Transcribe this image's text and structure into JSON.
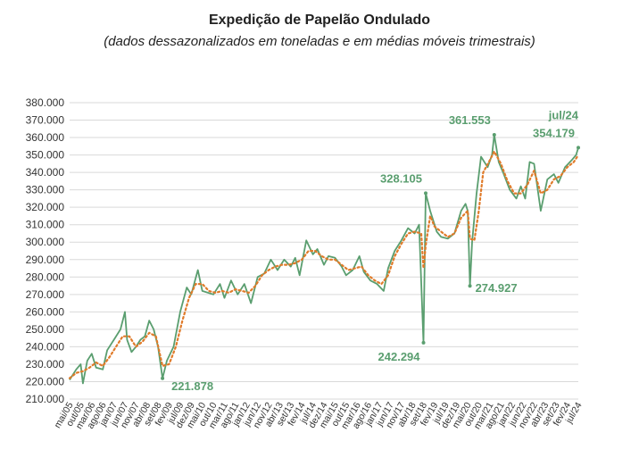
{
  "chart_data": {
    "type": "line",
    "title": "Expedição de Papelão Ondulado",
    "subtitle": "(dados dessazonalizados em toneladas e em médias móveis trimestrais)",
    "xlabel": "",
    "ylabel": "",
    "ylim": [
      210000,
      380000
    ],
    "ytick_step": 10000,
    "grid": true,
    "legend": "none",
    "colors": {
      "monthly": "#5a9e6f",
      "moving_average": "#e07b2a",
      "annotation": "#5a9e6f"
    },
    "x_start": "mai/05",
    "x_end": "jul/24",
    "x_tick_labels": [
      "mai/05",
      "out/05",
      "mar/06",
      "ago/06",
      "jan/07",
      "jun/07",
      "nov/07",
      "abr/08",
      "set/08",
      "fev/09",
      "jul/09",
      "dez/09",
      "mai/10",
      "out/10",
      "mar/11",
      "ago/11",
      "jan/12",
      "jun/12",
      "nov/12",
      "abr/13",
      "set/13",
      "fev/14",
      "jul/14",
      "dez/14",
      "mai/15",
      "out/15",
      "mar/16",
      "ago/16",
      "jan/17",
      "jun/17",
      "nov/17",
      "abr/18",
      "set/18",
      "fev/19",
      "jul/19",
      "dez/19",
      "mai/20",
      "out/20",
      "mar/21",
      "ago/21",
      "jan/22",
      "jun/22",
      "nov/22",
      "abr/23",
      "set/23",
      "fev/24",
      "jul/24"
    ],
    "series": [
      {
        "key": "monthly",
        "style": "solid",
        "points": [
          [
            "mai/05",
            221000
          ],
          [
            "ago/05",
            227000
          ],
          [
            "out/05",
            230000
          ],
          [
            "nov/05",
            219000
          ],
          [
            "jan/06",
            232000
          ],
          [
            "mar/06",
            236000
          ],
          [
            "mai/06",
            228000
          ],
          [
            "ago/06",
            227000
          ],
          [
            "out/06",
            238000
          ],
          [
            "jan/07",
            244000
          ],
          [
            "abr/07",
            250000
          ],
          [
            "jun/07",
            260000
          ],
          [
            "jul/07",
            244000
          ],
          [
            "set/07",
            237000
          ],
          [
            "nov/07",
            240000
          ],
          [
            "jan/08",
            244000
          ],
          [
            "mar/08",
            246000
          ],
          [
            "mai/08",
            255000
          ],
          [
            "jul/08",
            250000
          ],
          [
            "set/08",
            240000
          ],
          [
            "nov/08",
            221878
          ],
          [
            "jan/09",
            232000
          ],
          [
            "abr/09",
            240000
          ],
          [
            "jul/09",
            260000
          ],
          [
            "out/09",
            274000
          ],
          [
            "dez/09",
            270000
          ],
          [
            "mar/10",
            284000
          ],
          [
            "mai/10",
            272000
          ],
          [
            "out/10",
            270000
          ],
          [
            "jan/11",
            276000
          ],
          [
            "mar/11",
            268000
          ],
          [
            "jun/11",
            278000
          ],
          [
            "set/11",
            270000
          ],
          [
            "dez/11",
            276000
          ],
          [
            "mar/12",
            265000
          ],
          [
            "jun/12",
            280000
          ],
          [
            "set/12",
            282000
          ],
          [
            "dez/12",
            290000
          ],
          [
            "mar/13",
            284000
          ],
          [
            "jun/13",
            290000
          ],
          [
            "set/13",
            286000
          ],
          [
            "nov/13",
            291000
          ],
          [
            "jan/14",
            281000
          ],
          [
            "abr/14",
            301000
          ],
          [
            "jul/14",
            293000
          ],
          [
            "set/14",
            296000
          ],
          [
            "dez/14",
            287000
          ],
          [
            "fev/15",
            292000
          ],
          [
            "mai/15",
            291000
          ],
          [
            "ago/15",
            286000
          ],
          [
            "out/15",
            281000
          ],
          [
            "jan/16",
            284000
          ],
          [
            "abr/16",
            292000
          ],
          [
            "jun/16",
            283000
          ],
          [
            "set/16",
            278000
          ],
          [
            "dez/16",
            276000
          ],
          [
            "mar/17",
            272000
          ],
          [
            "mai/17",
            285000
          ],
          [
            "ago/17",
            295000
          ],
          [
            "nov/17",
            301000
          ],
          [
            "fev/18",
            308000
          ],
          [
            "mai/18",
            305000
          ],
          [
            "jul/18",
            310000
          ],
          [
            "set/18",
            242294
          ],
          [
            "out/18",
            328105
          ],
          [
            "dez/18",
            318000
          ],
          [
            "mar/19",
            306000
          ],
          [
            "mai/19",
            303000
          ],
          [
            "ago/19",
            302000
          ],
          [
            "nov/19",
            305000
          ],
          [
            "fev/20",
            318000
          ],
          [
            "abr/20",
            322000
          ],
          [
            "mai/20",
            318000
          ],
          [
            "jun/20",
            274927
          ],
          [
            "jul/20",
            300000
          ],
          [
            "set/20",
            328000
          ],
          [
            "nov/20",
            349000
          ],
          [
            "fev/21",
            343000
          ],
          [
            "abr/21",
            350000
          ],
          [
            "mai/21",
            361553
          ],
          [
            "jul/21",
            346000
          ],
          [
            "set/21",
            340000
          ],
          [
            "dez/21",
            330000
          ],
          [
            "mar/22",
            325000
          ],
          [
            "mai/22",
            332000
          ],
          [
            "jul/22",
            325000
          ],
          [
            "set/22",
            346000
          ],
          [
            "nov/22",
            345000
          ],
          [
            "fev/23",
            318000
          ],
          [
            "mai/23",
            336000
          ],
          [
            "ago/23",
            339000
          ],
          [
            "out/23",
            334000
          ],
          [
            "jan/24",
            343000
          ],
          [
            "abr/24",
            347000
          ],
          [
            "jun/24",
            350000
          ],
          [
            "jul/24",
            354179
          ]
        ]
      },
      {
        "key": "moving_average",
        "style": "dotted",
        "points": [
          [
            "mai/05",
            222000
          ],
          [
            "ago/05",
            225000
          ],
          [
            "nov/05",
            226000
          ],
          [
            "fev/06",
            228000
          ],
          [
            "mai/06",
            231000
          ],
          [
            "ago/06",
            229000
          ],
          [
            "nov/06",
            234000
          ],
          [
            "fev/07",
            240000
          ],
          [
            "mai/07",
            246000
          ],
          [
            "ago/07",
            246000
          ],
          [
            "nov/07",
            240000
          ],
          [
            "fev/08",
            243000
          ],
          [
            "mai/08",
            248000
          ],
          [
            "ago/08",
            246000
          ],
          [
            "nov/08",
            229000
          ],
          [
            "fev/09",
            230000
          ],
          [
            "mai/09",
            240000
          ],
          [
            "ago/09",
            255000
          ],
          [
            "nov/09",
            268000
          ],
          [
            "fev/10",
            276000
          ],
          [
            "mai/10",
            276000
          ],
          [
            "ago/10",
            272000
          ],
          [
            "nov/10",
            271000
          ],
          [
            "fev/11",
            272000
          ],
          [
            "mai/11",
            271000
          ],
          [
            "ago/11",
            273000
          ],
          [
            "nov/11",
            272000
          ],
          [
            "fev/12",
            271000
          ],
          [
            "mai/12",
            275000
          ],
          [
            "ago/12",
            281000
          ],
          [
            "nov/12",
            284000
          ],
          [
            "fev/13",
            286000
          ],
          [
            "mai/13",
            287000
          ],
          [
            "ago/13",
            287000
          ],
          [
            "nov/13",
            288000
          ],
          [
            "fev/14",
            290000
          ],
          [
            "mai/14",
            295000
          ],
          [
            "ago/14",
            295000
          ],
          [
            "nov/14",
            292000
          ],
          [
            "fev/15",
            290000
          ],
          [
            "mai/15",
            290000
          ],
          [
            "ago/15",
            287000
          ],
          [
            "nov/15",
            284000
          ],
          [
            "fev/16",
            285000
          ],
          [
            "mai/16",
            286000
          ],
          [
            "ago/16",
            281000
          ],
          [
            "nov/16",
            278000
          ],
          [
            "fev/17",
            276000
          ],
          [
            "mai/17",
            281000
          ],
          [
            "ago/17",
            292000
          ],
          [
            "nov/17",
            299000
          ],
          [
            "fev/18",
            305000
          ],
          [
            "mai/18",
            306000
          ],
          [
            "ago/18",
            305000
          ],
          [
            "set/18",
            285000
          ],
          [
            "out/18",
            298000
          ],
          [
            "dez/18",
            315000
          ],
          [
            "fev/19",
            309000
          ],
          [
            "mai/19",
            306000
          ],
          [
            "ago/19",
            303000
          ],
          [
            "nov/19",
            305000
          ],
          [
            "fev/20",
            314000
          ],
          [
            "mai/20",
            318000
          ],
          [
            "jun/20",
            302000
          ],
          [
            "ago/20",
            301000
          ],
          [
            "out/20",
            318000
          ],
          [
            "dez/20",
            340000
          ],
          [
            "mar/21",
            347000
          ],
          [
            "mai/21",
            352000
          ],
          [
            "ago/21",
            345000
          ],
          [
            "nov/21",
            335000
          ],
          [
            "fev/22",
            328000
          ],
          [
            "mai/22",
            328000
          ],
          [
            "ago/22",
            333000
          ],
          [
            "nov/22",
            341000
          ],
          [
            "fev/23",
            328000
          ],
          [
            "mai/23",
            330000
          ],
          [
            "ago/23",
            336000
          ],
          [
            "nov/23",
            338000
          ],
          [
            "fev/24",
            343000
          ],
          [
            "mai/24",
            346000
          ],
          [
            "jul/24",
            350000
          ]
        ]
      }
    ],
    "annotations": [
      {
        "x": "nov/08",
        "value": 221878,
        "label": "221.878",
        "placement": "right-below"
      },
      {
        "x": "out/18",
        "value": 328105,
        "label": "328.105",
        "placement": "above-left"
      },
      {
        "x": "set/18",
        "value": 242294,
        "label": "242.294",
        "placement": "below-left"
      },
      {
        "x": "jun/20",
        "value": 274927,
        "label": "274.927",
        "placement": "right"
      },
      {
        "x": "mai/21",
        "value": 361553,
        "label": "361.553",
        "placement": "above-left"
      },
      {
        "x": "jul/24",
        "value": 354179,
        "label": "354.179",
        "placement": "above-left"
      },
      {
        "x": "jul/24",
        "value": null,
        "label": "jul/24",
        "placement": "above-left-top"
      }
    ]
  }
}
